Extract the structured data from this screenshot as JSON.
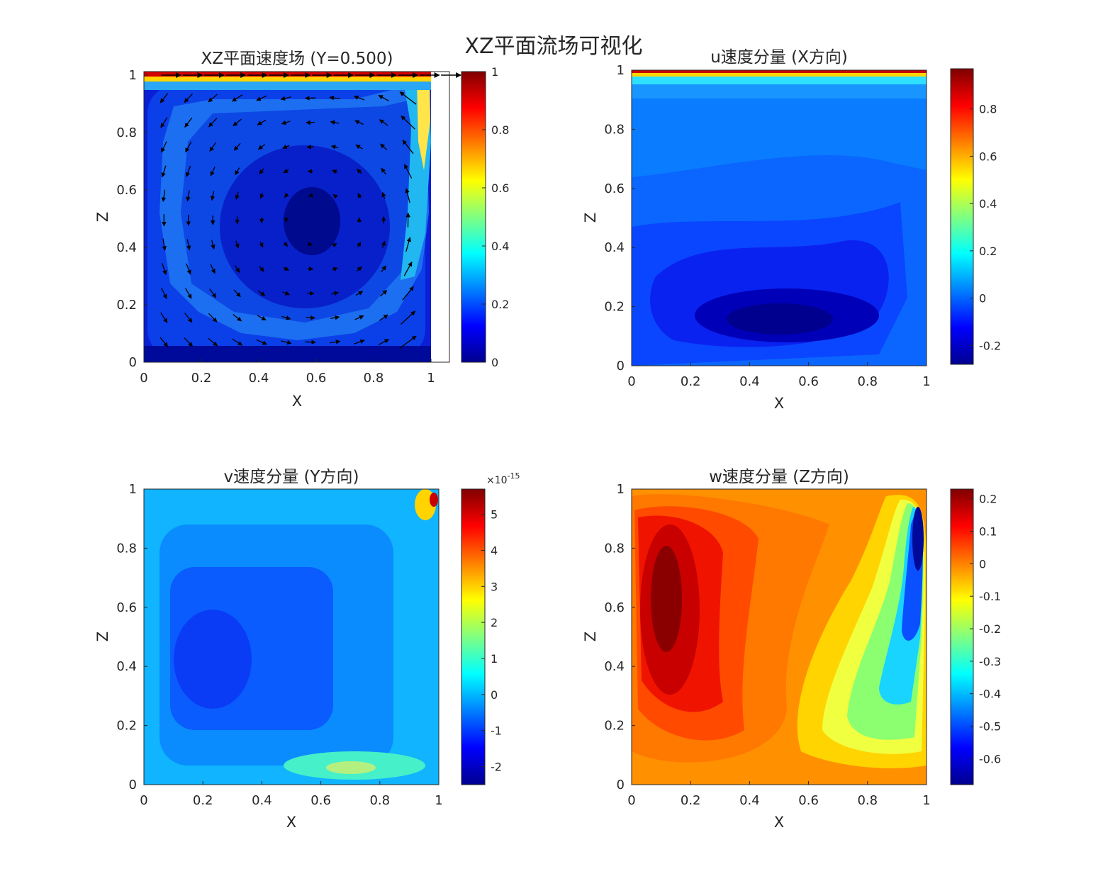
{
  "figure": {
    "title": "XZ平面流场可视化"
  },
  "colormap": {
    "name": "jet",
    "stops": [
      "#00008f",
      "#0000ff",
      "#0080ff",
      "#00ffff",
      "#80ff80",
      "#ffff00",
      "#ff8000",
      "#ff0000",
      "#800000"
    ]
  },
  "chart_data": [
    {
      "type": "heatmap",
      "subtype": "contourf+quiver",
      "title": "XZ平面速度场 (Y=0.500)",
      "xlabel": "X",
      "ylabel": "Z",
      "xlim": [
        0,
        1.06
      ],
      "ylim": [
        0,
        1.02
      ],
      "xticks": [
        "0",
        "0.2",
        "0.4",
        "0.6",
        "0.8",
        "1"
      ],
      "yticks": [
        "0",
        "0.2",
        "0.4",
        "0.6",
        "0.8",
        "1"
      ],
      "colorbar": {
        "ticks": [
          "0",
          "0.2",
          "0.4",
          "0.6",
          "0.8",
          "1"
        ],
        "range": [
          0,
          1
        ],
        "exponent": ""
      },
      "field": "speed magnitude; max 1 at lid (Z=1), vortex core near (0.6, 0.5)"
    },
    {
      "type": "heatmap",
      "subtype": "contourf",
      "title": "u速度分量 (X方向)",
      "xlabel": "X",
      "ylabel": "Z",
      "xlim": [
        0,
        1
      ],
      "ylim": [
        0,
        1
      ],
      "xticks": [
        "0",
        "0.2",
        "0.4",
        "0.6",
        "0.8",
        "1"
      ],
      "yticks": [
        "0",
        "0.2",
        "0.4",
        "0.6",
        "0.8",
        "1"
      ],
      "colorbar": {
        "ticks": [
          "-0.2",
          "0",
          "0.2",
          "0.4",
          "0.6",
          "0.8"
        ],
        "range": [
          -0.28,
          0.97
        ],
        "exponent": ""
      },
      "field": "u velocity; max ~0.97 at lid, min ~-0.28 near (0.5, 0.15)"
    },
    {
      "type": "heatmap",
      "subtype": "contourf",
      "title": "v速度分量 (Y方向)",
      "xlabel": "X",
      "ylabel": "Z",
      "xlim": [
        0,
        1
      ],
      "ylim": [
        0,
        1
      ],
      "xticks": [
        "0",
        "0.2",
        "0.4",
        "0.6",
        "0.8",
        "1"
      ],
      "yticks": [
        "0",
        "0.2",
        "0.4",
        "0.6",
        "0.8",
        "1"
      ],
      "colorbar": {
        "ticks": [
          "-2",
          "-1",
          "0",
          "1",
          "2",
          "3",
          "4",
          "5"
        ],
        "range": [
          -2.5,
          5.7
        ],
        "exponent": "×10^-15",
        "exponent_base": "×10",
        "exponent_power": "-15"
      },
      "field": "v velocity numerical noise of order 1e-15"
    },
    {
      "type": "heatmap",
      "subtype": "contourf",
      "title": "w速度分量 (Z方向)",
      "xlabel": "X",
      "ylabel": "Z",
      "xlim": [
        0,
        1
      ],
      "ylim": [
        0,
        1
      ],
      "xticks": [
        "0",
        "0.2",
        "0.4",
        "0.6",
        "0.8",
        "1"
      ],
      "yticks": [
        "0",
        "0.2",
        "0.4",
        "0.6",
        "0.8",
        "1"
      ],
      "colorbar": {
        "ticks": [
          "-0.6",
          "-0.5",
          "-0.4",
          "-0.3",
          "-0.2",
          "-0.1",
          "0",
          "0.1",
          "0.2"
        ],
        "range": [
          -0.68,
          0.23
        ],
        "exponent": ""
      },
      "field": "w velocity; max ~0.23 near (0.12, 0.6), min ~-0.68 near (0.97, 0.85)"
    }
  ]
}
